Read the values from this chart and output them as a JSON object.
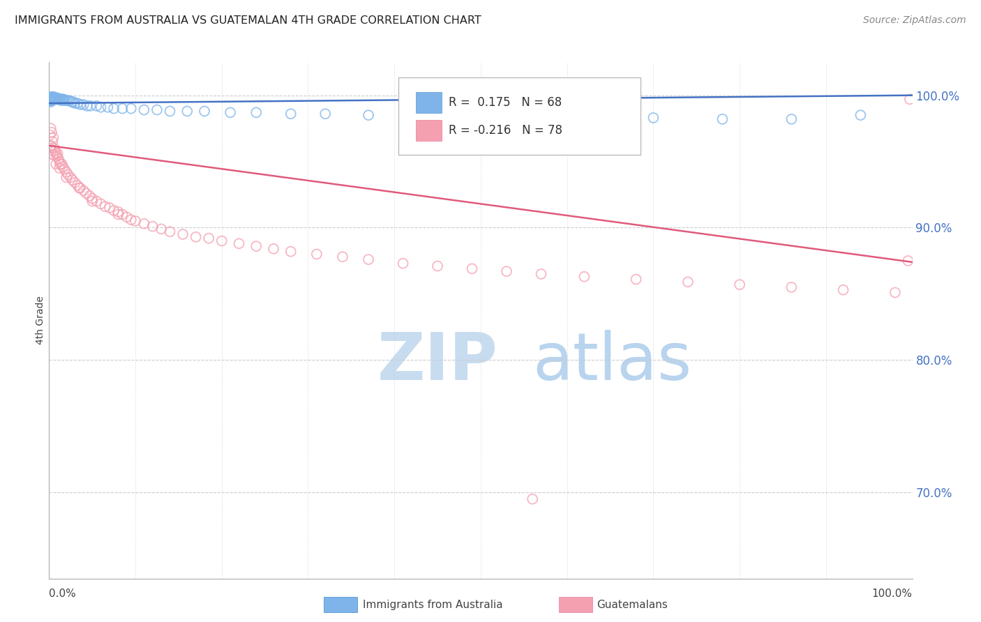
{
  "title": "IMMIGRANTS FROM AUSTRALIA VS GUATEMALAN 4TH GRADE CORRELATION CHART",
  "source": "Source: ZipAtlas.com",
  "ylabel": "4th Grade",
  "right_ytick_labels": [
    "70.0%",
    "80.0%",
    "90.0%",
    "100.0%"
  ],
  "right_ytick_vals": [
    0.7,
    0.8,
    0.9,
    1.0
  ],
  "xmin": 0.0,
  "xmax": 1.0,
  "ymin": 0.635,
  "ymax": 1.025,
  "blue_R": 0.175,
  "blue_N": 68,
  "pink_R": -0.216,
  "pink_N": 78,
  "blue_color": "#7EB4EA",
  "pink_color": "#F4A0B0",
  "blue_edge_color": "#5B9BD5",
  "pink_edge_color": "#E97BA0",
  "blue_line_color": "#4472C4",
  "pink_line_color": "#E05A7A",
  "grid_color": "#CCCCCC",
  "right_tick_color": "#4472C4",
  "title_color": "#222222",
  "source_color": "#888888",
  "legend_box_edge": "#BBBBBB",
  "blue_scatter_x": [
    0.001,
    0.001,
    0.001,
    0.002,
    0.002,
    0.002,
    0.002,
    0.002,
    0.003,
    0.003,
    0.003,
    0.004,
    0.004,
    0.005,
    0.005,
    0.005,
    0.006,
    0.006,
    0.007,
    0.007,
    0.008,
    0.008,
    0.009,
    0.01,
    0.01,
    0.011,
    0.012,
    0.013,
    0.014,
    0.015,
    0.016,
    0.017,
    0.018,
    0.02,
    0.022,
    0.024,
    0.026,
    0.028,
    0.03,
    0.033,
    0.036,
    0.04,
    0.044,
    0.048,
    0.055,
    0.06,
    0.068,
    0.075,
    0.085,
    0.095,
    0.11,
    0.125,
    0.14,
    0.16,
    0.18,
    0.21,
    0.24,
    0.28,
    0.32,
    0.37,
    0.42,
    0.48,
    0.55,
    0.62,
    0.7,
    0.78,
    0.86,
    0.94
  ],
  "blue_scatter_y": [
    0.998,
    0.997,
    0.996,
    0.999,
    0.998,
    0.997,
    0.996,
    0.995,
    0.998,
    0.997,
    0.996,
    0.998,
    0.997,
    0.999,
    0.998,
    0.997,
    0.998,
    0.997,
    0.998,
    0.997,
    0.998,
    0.997,
    0.997,
    0.998,
    0.997,
    0.997,
    0.997,
    0.997,
    0.996,
    0.997,
    0.997,
    0.997,
    0.996,
    0.996,
    0.996,
    0.996,
    0.995,
    0.995,
    0.994,
    0.994,
    0.993,
    0.993,
    0.992,
    0.992,
    0.992,
    0.991,
    0.991,
    0.99,
    0.99,
    0.99,
    0.989,
    0.989,
    0.988,
    0.988,
    0.988,
    0.987,
    0.987,
    0.986,
    0.986,
    0.985,
    0.985,
    0.984,
    0.984,
    0.983,
    0.983,
    0.982,
    0.982,
    0.985
  ],
  "pink_scatter_x": [
    0.001,
    0.001,
    0.002,
    0.002,
    0.003,
    0.003,
    0.004,
    0.005,
    0.005,
    0.006,
    0.007,
    0.008,
    0.009,
    0.01,
    0.011,
    0.012,
    0.013,
    0.015,
    0.016,
    0.018,
    0.02,
    0.022,
    0.025,
    0.027,
    0.03,
    0.033,
    0.036,
    0.04,
    0.043,
    0.047,
    0.05,
    0.055,
    0.06,
    0.065,
    0.07,
    0.075,
    0.08,
    0.085,
    0.09,
    0.095,
    0.1,
    0.11,
    0.12,
    0.13,
    0.14,
    0.155,
    0.17,
    0.185,
    0.2,
    0.22,
    0.24,
    0.26,
    0.28,
    0.31,
    0.34,
    0.37,
    0.41,
    0.45,
    0.49,
    0.53,
    0.57,
    0.62,
    0.68,
    0.74,
    0.8,
    0.86,
    0.92,
    0.98,
    0.995,
    0.997,
    0.005,
    0.008,
    0.012,
    0.02,
    0.035,
    0.05,
    0.08,
    0.56
  ],
  "pink_scatter_y": [
    0.97,
    0.96,
    0.975,
    0.962,
    0.972,
    0.958,
    0.965,
    0.968,
    0.955,
    0.96,
    0.958,
    0.956,
    0.954,
    0.956,
    0.952,
    0.95,
    0.948,
    0.948,
    0.946,
    0.944,
    0.942,
    0.94,
    0.938,
    0.936,
    0.934,
    0.932,
    0.93,
    0.928,
    0.926,
    0.924,
    0.922,
    0.92,
    0.918,
    0.916,
    0.915,
    0.913,
    0.912,
    0.91,
    0.908,
    0.906,
    0.905,
    0.903,
    0.901,
    0.899,
    0.897,
    0.895,
    0.893,
    0.892,
    0.89,
    0.888,
    0.886,
    0.884,
    0.882,
    0.88,
    0.878,
    0.876,
    0.873,
    0.871,
    0.869,
    0.867,
    0.865,
    0.863,
    0.861,
    0.859,
    0.857,
    0.855,
    0.853,
    0.851,
    0.875,
    0.997,
    0.955,
    0.948,
    0.945,
    0.938,
    0.93,
    0.92,
    0.91,
    0.695
  ]
}
